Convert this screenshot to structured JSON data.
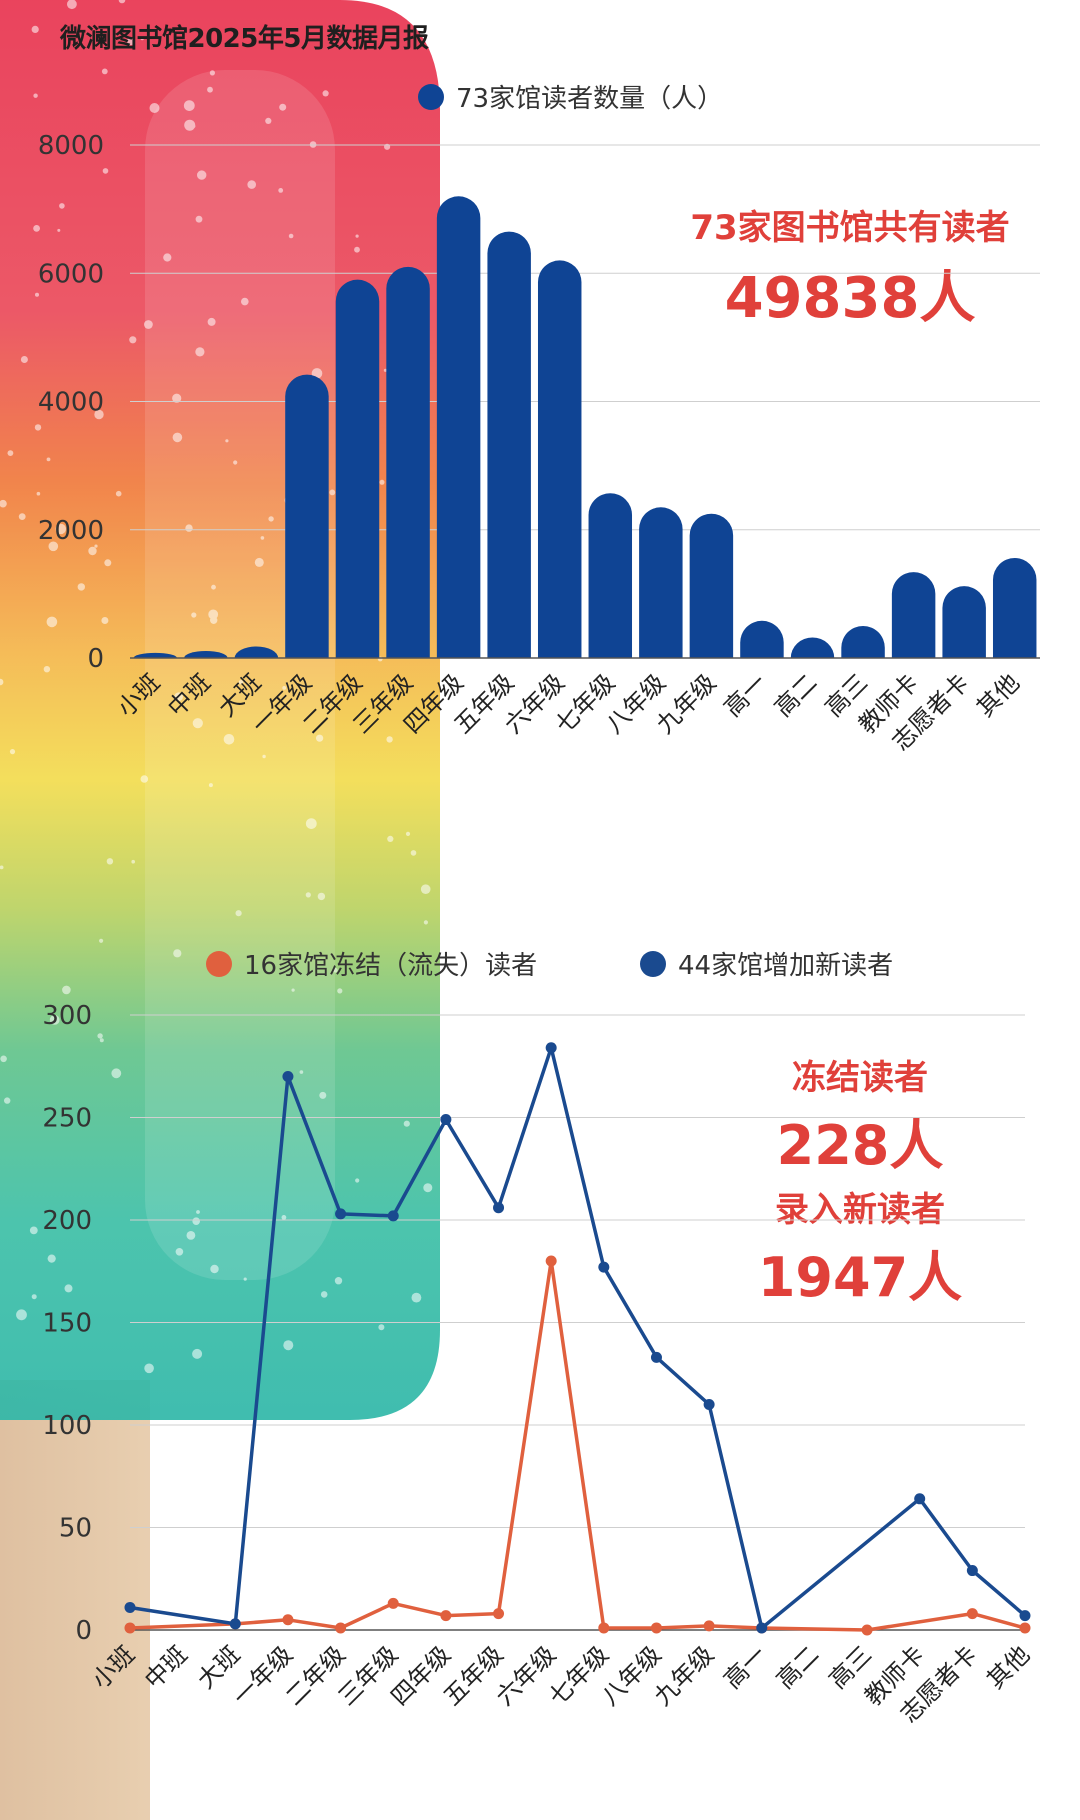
{
  "page_title": "微澜图书馆2025年5月数据月报",
  "summary1": {
    "line1": "73家图书馆共有读者",
    "line2": "49838人"
  },
  "summary2": {
    "line1": "冻结读者",
    "line2": "228人",
    "line3": "录入新读者",
    "line4": "1947人"
  },
  "colors": {
    "bar": "#0f4494",
    "new_line": "#1a4a8f",
    "frozen_line": "#e0603e",
    "callout": "#e0403a"
  },
  "chart_data": [
    {
      "type": "bar",
      "title": "",
      "categories": [
        "小班",
        "中班",
        "大班",
        "一年级",
        "二年级",
        "三年级",
        "四年级",
        "五年级",
        "六年级",
        "七年级",
        "八年级",
        "九年级",
        "高一",
        "高二",
        "高三",
        "教师卡",
        "志愿者卡",
        "其他"
      ],
      "series": [
        {
          "name": "73家馆读者数量（人）",
          "values": [
            80,
            110,
            180,
            4420,
            5900,
            6100,
            7200,
            6650,
            6200,
            2570,
            2350,
            2250,
            580,
            320,
            500,
            1340,
            1120,
            1560
          ]
        }
      ],
      "ylim": [
        0,
        8000
      ],
      "yticks": [
        0,
        2000,
        4000,
        6000,
        8000
      ],
      "grid": true,
      "legend": "top"
    },
    {
      "type": "line",
      "title": "",
      "categories": [
        "小班",
        "中班",
        "大班",
        "一年级",
        "二年级",
        "三年级",
        "四年级",
        "五年级",
        "六年级",
        "七年级",
        "八年级",
        "九年级",
        "高一",
        "高二",
        "高三",
        "教师卡",
        "志愿者卡",
        "其他"
      ],
      "series": [
        {
          "name": "16家馆冻结（流失）读者",
          "values": [
            1,
            null,
            3,
            5,
            1,
            13,
            7,
            8,
            180,
            1,
            1,
            2,
            1,
            null,
            0,
            null,
            8,
            1
          ]
        },
        {
          "name": "44家馆增加新读者",
          "values": [
            11,
            null,
            3,
            270,
            203,
            202,
            249,
            206,
            284,
            177,
            133,
            110,
            1,
            null,
            null,
            64,
            29,
            7
          ]
        }
      ],
      "ylim": [
        0,
        300
      ],
      "yticks": [
        0,
        50,
        100,
        150,
        200,
        250,
        300
      ],
      "grid": true,
      "legend": "top"
    }
  ]
}
